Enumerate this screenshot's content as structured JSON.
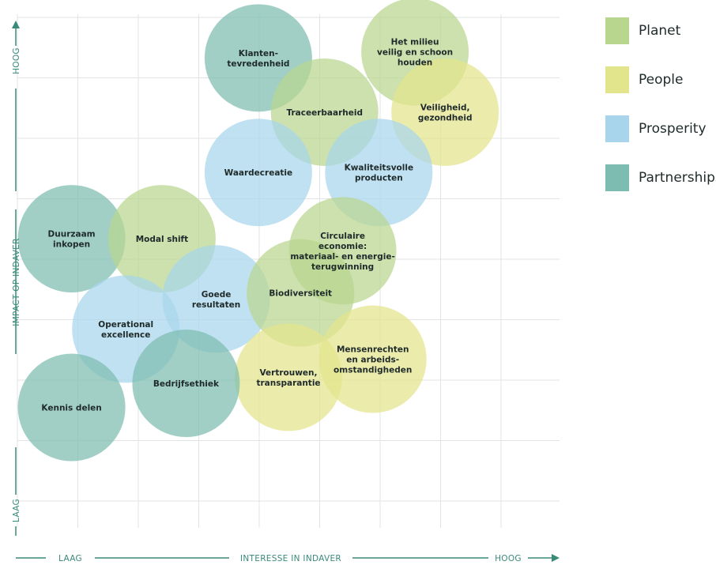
{
  "chart_data": {
    "type": "bubble",
    "xlabel": "INTERESSE IN INDAVER",
    "ylabel": "IMPACT OP INDAVER",
    "x_low_label": "LAAG",
    "x_high_label": "HOOG",
    "y_low_label": "LAAG",
    "y_high_label": "HOOG",
    "grid": true,
    "legend_position": "right",
    "xlim": [
      0,
      9
    ],
    "ylim": [
      0,
      8.5
    ],
    "categories": [
      {
        "name": "Planet",
        "color": "#b9d68f"
      },
      {
        "name": "People",
        "color": "#e3e58c"
      },
      {
        "name": "Prosperity",
        "color": "#a8d5ec"
      },
      {
        "name": "Partnerships",
        "color": "#7dbcb0"
      }
    ],
    "points": [
      {
        "label": [
          "Klanten-",
          "tevredenheid"
        ],
        "category": "Partnerships",
        "x": 4.0,
        "y": 7.8
      },
      {
        "label": [
          "Het milieu",
          "veilig en schoon",
          "houden"
        ],
        "category": "Planet",
        "x": 6.6,
        "y": 7.9
      },
      {
        "label": [
          "Traceerbaarheid"
        ],
        "category": "Planet",
        "x": 5.1,
        "y": 6.9
      },
      {
        "label": [
          "Veiligheid,",
          "gezondheid"
        ],
        "category": "People",
        "x": 7.1,
        "y": 6.9
      },
      {
        "label": [
          "Waardecreatie"
        ],
        "category": "Prosperity",
        "x": 4.0,
        "y": 5.9
      },
      {
        "label": [
          "Kwaliteitsvolle",
          "producten"
        ],
        "category": "Prosperity",
        "x": 6.0,
        "y": 5.9
      },
      {
        "label": [
          "Duurzaam",
          "inkopen"
        ],
        "category": "Partnerships",
        "x": 0.9,
        "y": 4.8
      },
      {
        "label": [
          "Modal shift"
        ],
        "category": "Planet",
        "x": 2.4,
        "y": 4.8
      },
      {
        "label": [
          "Circulaire",
          "economie:",
          "materiaal- en energie-",
          "terugwinning"
        ],
        "category": "Planet",
        "x": 5.4,
        "y": 4.6
      },
      {
        "label": [
          "Goede",
          "resultaten"
        ],
        "category": "Prosperity",
        "x": 3.3,
        "y": 3.8
      },
      {
        "label": [
          "Biodiversiteit"
        ],
        "category": "Planet",
        "x": 4.7,
        "y": 3.9
      },
      {
        "label": [
          "Operational",
          "excellence"
        ],
        "category": "Prosperity",
        "x": 1.8,
        "y": 3.3
      },
      {
        "label": [
          "Mensenrechten",
          "en arbeids-",
          "omstandigheden"
        ],
        "category": "People",
        "x": 5.9,
        "y": 2.8
      },
      {
        "label": [
          "Vertrouwen,",
          "transparantie"
        ],
        "category": "People",
        "x": 4.5,
        "y": 2.5
      },
      {
        "label": [
          "Bedrijfsethiek"
        ],
        "category": "Partnerships",
        "x": 2.8,
        "y": 2.4
      },
      {
        "label": [
          "Kennis delen"
        ],
        "category": "Partnerships",
        "x": 0.9,
        "y": 2.0
      }
    ]
  },
  "legend": {
    "items": [
      {
        "label": "Planet"
      },
      {
        "label": "People"
      },
      {
        "label": "Prosperity"
      },
      {
        "label": "Partnerships"
      }
    ]
  }
}
